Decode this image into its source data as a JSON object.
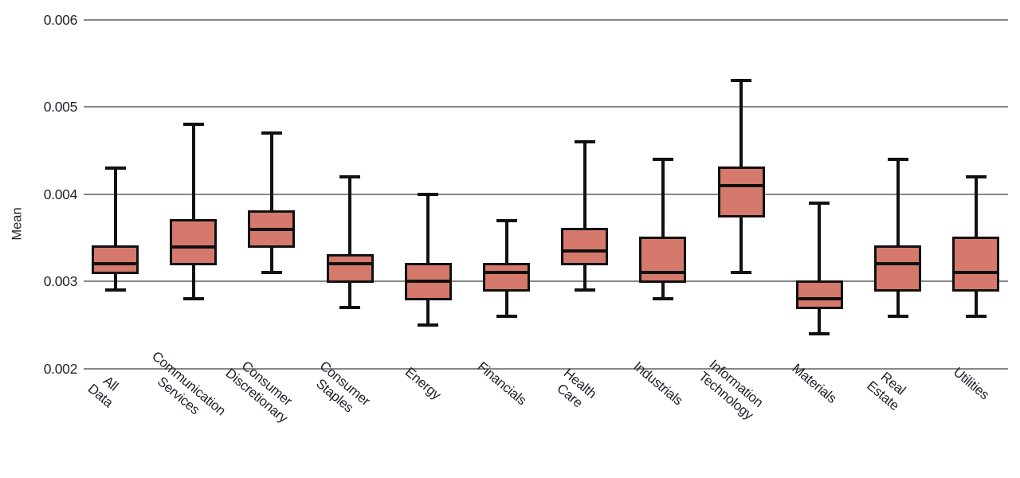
{
  "chart_data": {
    "type": "boxplot",
    "title": "",
    "ylabel": "Mean",
    "xlabel": "",
    "ylim": [
      0.002,
      0.006
    ],
    "yticks": [
      0.002,
      0.003,
      0.004,
      0.005,
      0.006
    ],
    "ytick_labels": [
      "0.002",
      "0.003",
      "0.004",
      "0.005",
      "0.006"
    ],
    "grid": "horizontal",
    "legend": "none",
    "box_fill_color": "#d4796b",
    "line_color": "#111111",
    "gridline_color": "#878787",
    "text_color": "#1e222b",
    "categories": [
      "All Data",
      "Communication\nServices",
      "Consumer\nDiscretionary",
      "Consumer Staples",
      "Energy",
      "Financials",
      "Health Care",
      "Industrials",
      "Information\nTechnology",
      "Materials",
      "Real Estate",
      "Utilities"
    ],
    "boxes": [
      {
        "category": "All Data",
        "whisker_low": 0.0029,
        "q1": 0.0031,
        "median": 0.0032,
        "q3": 0.0034,
        "whisker_high": 0.0043
      },
      {
        "category": "Communication Services",
        "whisker_low": 0.0028,
        "q1": 0.0032,
        "median": 0.0034,
        "q3": 0.0037,
        "whisker_high": 0.0048
      },
      {
        "category": "Consumer Discretionary",
        "whisker_low": 0.0031,
        "q1": 0.0034,
        "median": 0.0036,
        "q3": 0.0038,
        "whisker_high": 0.0047
      },
      {
        "category": "Consumer Staples",
        "whisker_low": 0.0027,
        "q1": 0.003,
        "median": 0.0032,
        "q3": 0.0033,
        "whisker_high": 0.0042
      },
      {
        "category": "Energy",
        "whisker_low": 0.0025,
        "q1": 0.0028,
        "median": 0.003,
        "q3": 0.0032,
        "whisker_high": 0.004
      },
      {
        "category": "Financials",
        "whisker_low": 0.0026,
        "q1": 0.0029,
        "median": 0.0031,
        "q3": 0.0032,
        "whisker_high": 0.0037
      },
      {
        "category": "Health Care",
        "whisker_low": 0.0029,
        "q1": 0.0032,
        "median": 0.00335,
        "q3": 0.0036,
        "whisker_high": 0.0046
      },
      {
        "category": "Industrials",
        "whisker_low": 0.0028,
        "q1": 0.003,
        "median": 0.0031,
        "q3": 0.0035,
        "whisker_high": 0.0044
      },
      {
        "category": "Information Technology",
        "whisker_low": 0.0031,
        "q1": 0.00375,
        "median": 0.0041,
        "q3": 0.0043,
        "whisker_high": 0.0053
      },
      {
        "category": "Materials",
        "whisker_low": 0.0024,
        "q1": 0.0027,
        "median": 0.0028,
        "q3": 0.003,
        "whisker_high": 0.0039
      },
      {
        "category": "Real Estate",
        "whisker_low": 0.0026,
        "q1": 0.0029,
        "median": 0.0032,
        "q3": 0.0034,
        "whisker_high": 0.0044
      },
      {
        "category": "Utilities",
        "whisker_low": 0.0026,
        "q1": 0.0029,
        "median": 0.0031,
        "q3": 0.0035,
        "whisker_high": 0.0042
      }
    ]
  }
}
